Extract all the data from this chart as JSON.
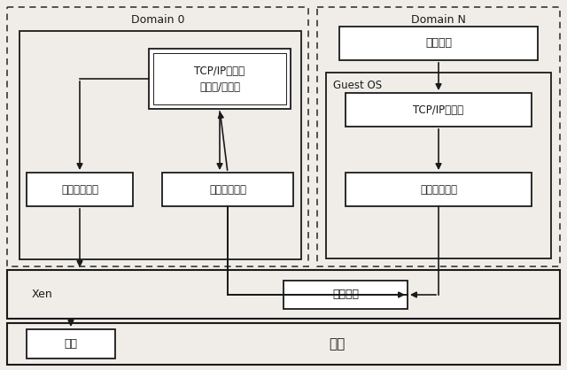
{
  "bg_color": "#f0ede8",
  "white": "#ffffff",
  "line_color": "#1a1a1a",
  "dash_color": "#444444",
  "domain0_label": "Domain 0",
  "domainN_label": "Domain N",
  "xen_label": "Xen",
  "hardware_label": "硬件",
  "guest_os_label": "Guest OS",
  "app_label": "应用程序",
  "tcp_d0_line1": "TCP/IP协议栈",
  "tcp_d0_line2": "（路由/桥接）",
  "local_driver_label": "本地设备驱动",
  "backend_driver_label": "后端设备驱动",
  "tcp_dN_label": "TCP/IP协议栈",
  "frontend_driver_label": "前端设备驱动",
  "shared_mem_label": "共享内存",
  "nic_label": "网卡",
  "fs": 9,
  "fs_small": 8.5
}
